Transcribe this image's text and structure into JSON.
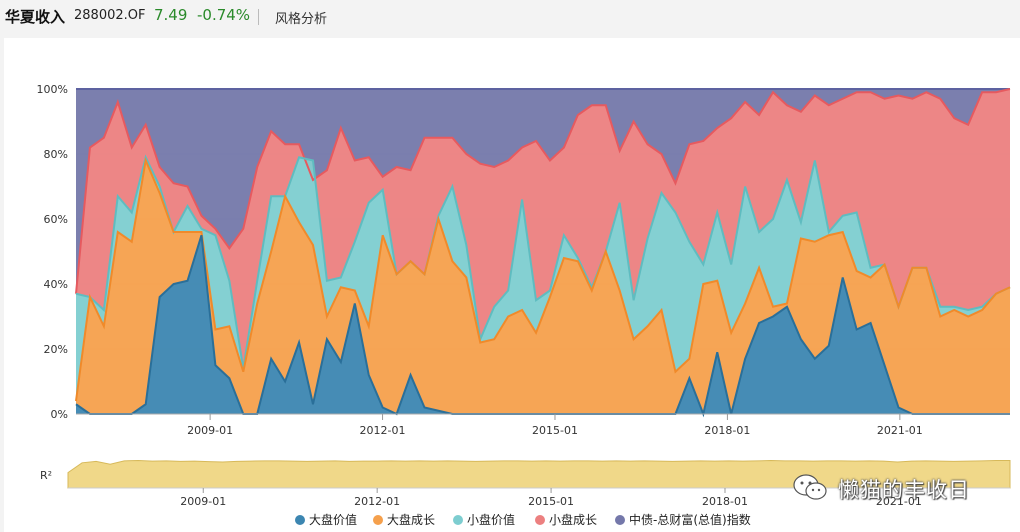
{
  "header": {
    "fund_name": "华夏收入",
    "fund_code": "288002.OF",
    "nav": "7.49",
    "change": "-0.74%",
    "section": "风格分析"
  },
  "colors": {
    "large_value": "#3c86b1",
    "large_growth": "#f5a04c",
    "small_value": "#7dcdd0",
    "small_growth": "#ec8080",
    "bond_index": "#7478aa",
    "r2_fill": "#f0d889"
  },
  "watermark": "懒猫的丰收日",
  "chart_data": {
    "type": "area",
    "stacked": true,
    "normalized": true,
    "x_start": "2006-09",
    "x_end": "2022-12",
    "xtick_labels": [
      "2009-01",
      "2012-01",
      "2015-01",
      "2018-01",
      "2021-01"
    ],
    "ytick_labels": [
      "0%",
      "20%",
      "40%",
      "60%",
      "80%",
      "100%"
    ],
    "ylim": [
      0,
      100
    ],
    "legend_position": "bottom",
    "series_names": [
      "大盘价值",
      "大盘成长",
      "小盘价值",
      "小盘成长",
      "中债-总财富(总值)指数"
    ],
    "cum": [
      [
        3,
        4,
        37
      ],
      [
        0,
        36,
        36
      ],
      [
        0,
        27,
        32
      ],
      [
        0,
        56,
        67
      ],
      [
        0,
        53,
        62
      ],
      [
        3,
        78,
        79
      ],
      [
        36,
        68,
        70
      ],
      [
        40,
        56,
        56
      ],
      [
        41,
        56,
        64
      ],
      [
        55,
        56,
        57
      ],
      [
        15,
        26,
        55
      ],
      [
        11,
        27,
        41
      ],
      [
        0,
        13,
        14
      ],
      [
        0,
        34,
        41
      ],
      [
        17,
        50,
        67
      ],
      [
        10,
        67,
        67
      ],
      [
        22,
        59,
        79
      ],
      [
        3,
        52,
        78
      ],
      [
        23,
        30,
        41
      ],
      [
        16,
        39,
        42
      ],
      [
        34,
        38,
        53
      ],
      [
        12,
        27,
        65
      ],
      [
        2,
        55,
        69
      ],
      [
        0,
        43,
        43
      ],
      [
        12,
        47,
        47
      ],
      [
        2,
        43,
        43
      ],
      [
        1,
        60,
        61
      ],
      [
        0,
        47,
        70
      ],
      [
        0,
        42,
        52
      ],
      [
        0,
        22,
        23
      ],
      [
        0,
        23,
        33
      ],
      [
        0,
        30,
        38
      ],
      [
        0,
        32,
        66
      ],
      [
        0,
        25,
        35
      ],
      [
        0,
        36,
        38
      ],
      [
        0,
        48,
        55
      ],
      [
        0,
        47,
        48
      ],
      [
        0,
        38,
        39
      ],
      [
        0,
        50,
        50
      ],
      [
        0,
        38,
        65
      ],
      [
        0,
        23,
        35
      ],
      [
        0,
        27,
        54
      ],
      [
        0,
        32,
        68
      ],
      [
        0,
        13,
        62
      ],
      [
        11,
        17,
        53
      ],
      [
        0,
        40,
        46
      ],
      [
        19,
        41,
        62
      ],
      [
        0,
        25,
        46
      ],
      [
        17,
        34,
        70
      ],
      [
        28,
        45,
        56
      ],
      [
        30,
        33,
        60
      ],
      [
        33,
        34,
        72
      ],
      [
        23,
        54,
        59
      ],
      [
        17,
        53,
        78
      ],
      [
        21,
        55,
        56
      ],
      [
        42,
        56,
        61
      ],
      [
        26,
        44,
        62
      ],
      [
        28,
        42,
        45
      ],
      [
        15,
        46,
        46
      ],
      [
        2,
        33,
        33
      ],
      [
        0,
        45,
        45
      ],
      [
        0,
        45,
        45
      ],
      [
        0,
        30,
        33
      ],
      [
        0,
        32,
        33
      ],
      [
        0,
        30,
        32
      ],
      [
        0,
        32,
        33
      ],
      [
        0,
        37,
        37
      ],
      [
        0,
        39,
        39
      ]
    ],
    "sg_top": [
      37,
      82,
      85,
      96,
      82,
      89,
      76,
      71,
      70,
      61,
      57,
      51,
      57,
      76,
      87,
      83,
      83,
      72,
      75,
      88,
      78,
      79,
      73,
      76,
      75,
      85,
      85,
      85,
      80,
      77,
      76,
      78,
      82,
      84,
      78,
      82,
      92,
      95,
      95,
      81,
      90,
      83,
      80,
      71,
      83,
      84,
      88,
      91,
      96,
      92,
      99,
      95,
      93,
      98,
      95,
      97,
      99,
      99,
      97,
      98,
      97,
      99,
      97,
      91,
      89,
      99,
      99,
      100
    ],
    "r2": [
      0.55,
      0.9,
      0.95,
      0.85,
      0.97,
      0.98,
      0.96,
      0.97,
      0.95,
      0.96,
      0.94,
      0.93,
      0.95,
      0.96,
      0.97,
      0.97,
      0.96,
      0.95,
      0.96,
      0.97,
      0.95,
      0.96,
      0.96,
      0.97,
      0.96,
      0.97,
      0.96,
      0.97,
      0.96,
      0.95,
      0.96,
      0.97,
      0.97,
      0.96,
      0.97,
      0.96,
      0.97,
      0.97,
      0.96,
      0.97,
      0.96,
      0.97,
      0.96,
      0.95,
      0.96,
      0.97,
      0.96,
      0.97,
      0.96,
      0.97,
      0.98,
      0.97,
      0.97,
      0.96,
      0.97,
      0.97,
      0.96,
      0.97,
      0.96,
      0.93,
      0.96,
      0.97,
      0.96,
      0.95,
      0.96,
      0.97,
      0.98,
      0.98
    ],
    "r2_label": "R²"
  }
}
